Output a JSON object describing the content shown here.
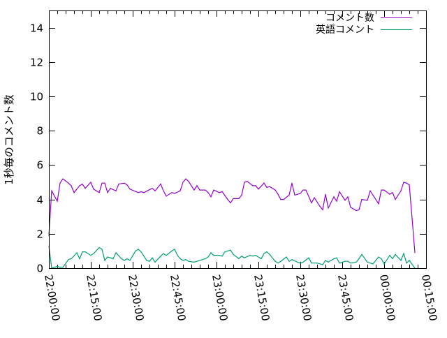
{
  "chart_data": {
    "type": "line",
    "title": "",
    "xlabel": "",
    "ylabel": "1秒毎のコメント数",
    "xlim": [
      "22:00:00",
      "00:15:00"
    ],
    "ylim": [
      0,
      15
    ],
    "x_ticks": [
      "22:00:00",
      "22:15:00",
      "22:30:00",
      "22:45:00",
      "23:00:00",
      "23:15:00",
      "23:30:00",
      "23:45:00",
      "00:00:00",
      "00:15:00"
    ],
    "y_ticks": [
      "0",
      "2",
      "4",
      "6",
      "8",
      "10",
      "12",
      "14"
    ],
    "grid": false,
    "legend": "top-right",
    "series": [
      {
        "name": "コメント数",
        "color": "#9400d3",
        "x": [
          "22:00",
          "22:01",
          "22:03",
          "22:04",
          "22:05",
          "22:07",
          "22:08",
          "22:09",
          "22:11",
          "22:12",
          "22:13",
          "22:15",
          "22:16",
          "22:18",
          "22:19",
          "22:20",
          "22:21",
          "22:22",
          "22:24",
          "22:25",
          "22:27",
          "22:28",
          "22:29",
          "22:32",
          "22:33",
          "22:34",
          "22:37",
          "22:38",
          "22:40",
          "22:41",
          "22:42",
          "22:44",
          "22:45",
          "22:47",
          "22:48",
          "22:49",
          "22:50",
          "22:52",
          "22:53",
          "22:54",
          "22:56",
          "22:57",
          "22:58",
          "22:59",
          "23:01",
          "23:02",
          "23:04",
          "23:05",
          "23:06",
          "23:08",
          "23:09",
          "23:10",
          "23:11",
          "23:13",
          "23:14",
          "23:15",
          "23:17",
          "23:18",
          "23:19",
          "23:21",
          "23:22",
          "23:23",
          "23:24",
          "23:26",
          "23:27",
          "23:28",
          "23:30",
          "23:31",
          "23:32",
          "23:34",
          "23:35",
          "23:37",
          "23:38",
          "23:39",
          "23:40",
          "23:42",
          "23:43",
          "23:44",
          "23:46",
          "23:47",
          "23:48",
          "23:50",
          "23:51",
          "23:52",
          "23:54",
          "23:55",
          "23:56",
          "23:58",
          "23:59",
          "00:00",
          "00:02",
          "00:03",
          "00:04",
          "00:06",
          "00:07",
          "00:08",
          "00:09",
          "00:10",
          "00:11"
        ],
        "values": [
          1.9,
          4.5,
          3.9,
          4.95,
          5.2,
          4.95,
          4.8,
          4.4,
          4.8,
          4.9,
          4.65,
          5.0,
          4.6,
          4.4,
          4.95,
          4.95,
          4.4,
          4.65,
          4.5,
          4.9,
          4.95,
          4.85,
          4.6,
          4.4,
          4.45,
          4.4,
          4.65,
          4.5,
          4.9,
          4.5,
          4.2,
          4.4,
          4.35,
          4.5,
          5.0,
          5.2,
          5.05,
          4.55,
          4.8,
          4.55,
          4.55,
          4.4,
          4.15,
          4.55,
          4.4,
          4.45,
          4.0,
          3.8,
          4.05,
          4.05,
          4.25,
          5.0,
          5.05,
          4.8,
          4.8,
          4.6,
          4.95,
          4.7,
          4.75,
          4.55,
          4.3,
          4.0,
          4.0,
          4.25,
          4.95,
          4.25,
          4.35,
          4.55,
          4.55,
          3.8,
          4.1,
          3.6,
          3.4,
          4.3,
          3.5,
          4.15,
          3.9,
          4.45,
          3.95,
          4.15,
          3.55,
          3.35,
          3.4,
          4.0,
          3.95,
          4.5,
          4.25,
          3.75,
          4.55,
          4.55,
          4.3,
          4.4,
          4.0,
          4.5,
          5.0,
          4.95,
          4.85,
          2.9,
          0.9
        ]
      },
      {
        "name": "英語コメント",
        "color": "#009e73",
        "x": [
          "22:00",
          "22:01",
          "22:03",
          "22:04",
          "22:05",
          "22:07",
          "22:08",
          "22:10",
          "22:11",
          "22:12",
          "22:13",
          "22:15",
          "22:16",
          "22:18",
          "22:19",
          "22:20",
          "22:21",
          "22:23",
          "22:24",
          "22:26",
          "22:27",
          "22:28",
          "22:29",
          "22:31",
          "22:32",
          "22:33",
          "22:35",
          "22:36",
          "22:37",
          "22:38",
          "22:40",
          "22:41",
          "22:42",
          "22:44",
          "22:45",
          "22:46",
          "22:47",
          "22:48",
          "22:49",
          "22:50",
          "22:52",
          "22:53",
          "22:54",
          "22:56",
          "22:57",
          "22:58",
          "22:59",
          "23:01",
          "23:02",
          "23:03",
          "23:05",
          "23:06",
          "23:08",
          "23:09",
          "23:10",
          "23:12",
          "23:13",
          "23:14",
          "23:16",
          "23:17",
          "23:18",
          "23:19",
          "23:21",
          "23:22",
          "23:23",
          "23:25",
          "23:26",
          "23:27",
          "23:29",
          "23:30",
          "23:31",
          "23:33",
          "23:34",
          "23:36",
          "23:38",
          "23:39",
          "23:40",
          "23:42",
          "23:43",
          "23:44",
          "23:46",
          "23:47",
          "23:48",
          "23:50",
          "23:51",
          "23:52",
          "23:54",
          "23:55",
          "23:56",
          "23:58",
          "23:59",
          "00:00",
          "00:02",
          "00:03",
          "00:04",
          "00:06",
          "00:07",
          "00:08",
          "00:09",
          "00:11"
        ],
        "values": [
          1.3,
          0,
          0.1,
          0.05,
          0.05,
          0.5,
          0.55,
          0.9,
          0.55,
          0.95,
          0.95,
          0.75,
          0.85,
          1.2,
          1.1,
          0.45,
          0.65,
          0.55,
          0.9,
          0.55,
          0.45,
          0.55,
          0.45,
          1.0,
          1.1,
          0.95,
          0.45,
          0.4,
          0.6,
          0.35,
          0.7,
          0.85,
          0.75,
          1.0,
          1.1,
          0.75,
          0.55,
          0.45,
          0.5,
          0.4,
          0.35,
          0.4,
          0.45,
          0.55,
          0.65,
          0.9,
          0.75,
          0.75,
          0.7,
          0.95,
          1.05,
          0.8,
          0.55,
          0.7,
          0.6,
          0.75,
          0.7,
          0.75,
          0.55,
          0.85,
          0.95,
          0.8,
          0.4,
          0.3,
          0.4,
          0.65,
          0.4,
          0.5,
          0.35,
          0.3,
          0.35,
          0.6,
          0.3,
          0.3,
          0.2,
          0.45,
          0.35,
          0.55,
          0.6,
          0.3,
          0.4,
          0.4,
          0.3,
          0.35,
          0.55,
          0.8,
          0.35,
          0.3,
          0.25,
          0.65,
          0.55,
          0.25,
          0.75,
          0.55,
          0.8,
          0.45,
          0.85,
          0.3,
          0.45,
          0
        ]
      }
    ]
  }
}
